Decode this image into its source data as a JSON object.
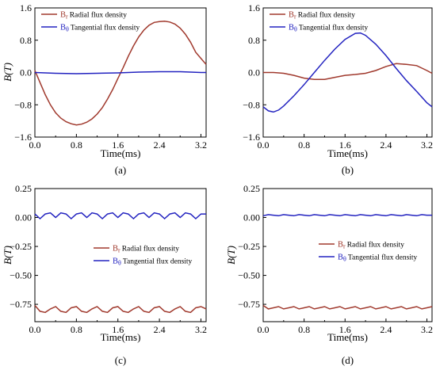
{
  "chart_data": [
    {
      "type": "line",
      "panel_label": "(a)",
      "xlabel": "Time(ms)",
      "ylabel": "B(T)",
      "xlim": [
        0,
        3.3
      ],
      "ylim": [
        -1.6,
        1.6
      ],
      "xticks": [
        "0.0",
        "0.8",
        "1.6",
        "2.4",
        "3.2"
      ],
      "yticks": [
        "1.6",
        "0.8",
        "0.0",
        "-0.8",
        "-1.6"
      ],
      "legend_position": "top-left",
      "series": [
        {
          "symbol": "B",
          "subscript": "r",
          "name": "Radial flux density",
          "color": "#a0392d",
          "x": [
            0,
            0.1,
            0.2,
            0.3,
            0.4,
            0.5,
            0.6,
            0.7,
            0.8,
            0.9,
            1.0,
            1.1,
            1.2,
            1.3,
            1.4,
            1.5,
            1.6,
            1.7,
            1.8,
            1.9,
            2.0,
            2.1,
            2.2,
            2.3,
            2.4,
            2.5,
            2.6,
            2.7,
            2.8,
            2.9,
            3.0,
            3.1,
            3.2,
            3.3
          ],
          "y": [
            0.05,
            -0.25,
            -0.55,
            -0.8,
            -1.0,
            -1.13,
            -1.22,
            -1.27,
            -1.3,
            -1.28,
            -1.23,
            -1.15,
            -1.03,
            -0.87,
            -0.66,
            -0.42,
            -0.15,
            0.12,
            0.4,
            0.66,
            0.88,
            1.05,
            1.17,
            1.24,
            1.26,
            1.27,
            1.25,
            1.2,
            1.1,
            0.95,
            0.75,
            0.5,
            0.35,
            0.2
          ]
        },
        {
          "symbol": "B",
          "subscript": "θ",
          "name": "Tangential flux density",
          "color": "#2323c0",
          "x": [
            0,
            0.4,
            0.8,
            1.2,
            1.6,
            2.0,
            2.4,
            2.8,
            3.2,
            3.3
          ],
          "y": [
            0.0,
            -0.02,
            -0.03,
            -0.02,
            -0.01,
            0.01,
            0.02,
            0.02,
            0.0,
            0.0
          ]
        }
      ]
    },
    {
      "type": "line",
      "panel_label": "(b)",
      "xlabel": "Time(ms)",
      "ylabel": "",
      "xlim": [
        0,
        3.3
      ],
      "ylim": [
        -1.6,
        1.6
      ],
      "xticks": [
        "0.0",
        "0.8",
        "1.6",
        "2.4",
        "3.2"
      ],
      "yticks": [
        "1.6",
        "0.8",
        "0.0",
        "-0.8",
        "-1.6"
      ],
      "legend_position": "top-left",
      "series": [
        {
          "symbol": "B",
          "subscript": "r",
          "name": "Radial flux density",
          "color": "#a0392d",
          "x": [
            0,
            0.2,
            0.4,
            0.6,
            0.8,
            1.0,
            1.2,
            1.4,
            1.6,
            1.8,
            2.0,
            2.2,
            2.4,
            2.6,
            2.8,
            3.0,
            3.2,
            3.3
          ],
          "y": [
            0.0,
            0.0,
            -0.02,
            -0.07,
            -0.14,
            -0.17,
            -0.17,
            -0.12,
            -0.07,
            -0.05,
            -0.02,
            0.05,
            0.15,
            0.22,
            0.2,
            0.17,
            0.05,
            -0.02
          ]
        },
        {
          "symbol": "B",
          "subscript": "θ",
          "name": "Tangential flux density",
          "color": "#2323c0",
          "x": [
            0,
            0.1,
            0.2,
            0.3,
            0.4,
            0.6,
            0.8,
            1.0,
            1.2,
            1.4,
            1.6,
            1.8,
            1.9,
            2.0,
            2.2,
            2.4,
            2.6,
            2.8,
            3.0,
            3.2,
            3.3
          ],
          "y": [
            -0.85,
            -0.95,
            -0.98,
            -0.93,
            -0.83,
            -0.58,
            -0.3,
            0.0,
            0.3,
            0.58,
            0.82,
            0.97,
            0.98,
            0.92,
            0.7,
            0.42,
            0.1,
            -0.2,
            -0.47,
            -0.75,
            -0.85
          ]
        }
      ]
    },
    {
      "type": "line",
      "panel_label": "(c)",
      "xlabel": "Time(ms)",
      "ylabel": "B(T)",
      "xlim": [
        0,
        3.3
      ],
      "ylim": [
        -0.9,
        0.25
      ],
      "xticks": [
        "0.0",
        "0.8",
        "1.6",
        "2.4",
        "3.2"
      ],
      "yticks": [
        "0.25",
        "0.00",
        "-0.25",
        "-0.50",
        "-0.75"
      ],
      "legend_position": "center-left",
      "series": [
        {
          "symbol": "B",
          "subscript": "r",
          "name": "Radial flux density",
          "color": "#a0392d",
          "x": [
            0,
            0.1,
            0.2,
            0.3,
            0.4,
            0.5,
            0.6,
            0.7,
            0.8,
            0.9,
            1.0,
            1.1,
            1.2,
            1.3,
            1.4,
            1.5,
            1.6,
            1.7,
            1.8,
            1.9,
            2.0,
            2.1,
            2.2,
            2.3,
            2.4,
            2.5,
            2.6,
            2.7,
            2.8,
            2.9,
            3.0,
            3.1,
            3.2,
            3.3
          ],
          "y": [
            -0.76,
            -0.81,
            -0.82,
            -0.79,
            -0.77,
            -0.81,
            -0.82,
            -0.78,
            -0.77,
            -0.81,
            -0.82,
            -0.79,
            -0.77,
            -0.81,
            -0.82,
            -0.78,
            -0.77,
            -0.81,
            -0.82,
            -0.79,
            -0.77,
            -0.81,
            -0.82,
            -0.78,
            -0.77,
            -0.81,
            -0.82,
            -0.79,
            -0.77,
            -0.81,
            -0.82,
            -0.78,
            -0.77,
            -0.79
          ]
        },
        {
          "symbol": "B",
          "subscript": "θ",
          "name": "Tangential flux density",
          "color": "#2323c0",
          "x": [
            0,
            0.1,
            0.2,
            0.3,
            0.4,
            0.5,
            0.6,
            0.7,
            0.8,
            0.9,
            1.0,
            1.1,
            1.2,
            1.3,
            1.4,
            1.5,
            1.6,
            1.7,
            1.8,
            1.9,
            2.0,
            2.1,
            2.2,
            2.3,
            2.4,
            2.5,
            2.6,
            2.7,
            2.8,
            2.9,
            3.0,
            3.1,
            3.2,
            3.3
          ],
          "y": [
            0.03,
            -0.01,
            0.03,
            0.04,
            0.0,
            0.04,
            0.03,
            -0.01,
            0.03,
            0.04,
            0.0,
            0.04,
            0.03,
            -0.01,
            0.03,
            0.04,
            0.0,
            0.04,
            0.03,
            -0.01,
            0.03,
            0.04,
            0.0,
            0.04,
            0.03,
            -0.01,
            0.03,
            0.04,
            0.0,
            0.04,
            0.03,
            -0.01,
            0.03,
            0.03
          ]
        }
      ]
    },
    {
      "type": "line",
      "panel_label": "(d)",
      "xlabel": "Time(ms)",
      "ylabel": "B(T)",
      "xlim": [
        0,
        3.3
      ],
      "ylim": [
        -0.9,
        0.25
      ],
      "xticks": [
        "0.0",
        "0.8",
        "1.6",
        "2.4",
        "3.2"
      ],
      "yticks": [
        "0.25",
        "0.00",
        "-0.25",
        "-0.50",
        "-0.75"
      ],
      "legend_position": "center-left",
      "series": [
        {
          "symbol": "B",
          "subscript": "r",
          "name": "Radial flux density",
          "color": "#a0392d",
          "x": [
            0,
            0.1,
            0.2,
            0.3,
            0.4,
            0.5,
            0.6,
            0.7,
            0.8,
            0.9,
            1.0,
            1.1,
            1.2,
            1.3,
            1.4,
            1.5,
            1.6,
            1.7,
            1.8,
            1.9,
            2.0,
            2.1,
            2.2,
            2.3,
            2.4,
            2.5,
            2.6,
            2.7,
            2.8,
            2.9,
            3.0,
            3.1,
            3.2,
            3.3
          ],
          "y": [
            -0.76,
            -0.79,
            -0.78,
            -0.77,
            -0.79,
            -0.78,
            -0.77,
            -0.79,
            -0.78,
            -0.77,
            -0.79,
            -0.78,
            -0.77,
            -0.79,
            -0.78,
            -0.77,
            -0.79,
            -0.78,
            -0.77,
            -0.79,
            -0.78,
            -0.77,
            -0.79,
            -0.78,
            -0.77,
            -0.79,
            -0.78,
            -0.77,
            -0.79,
            -0.78,
            -0.77,
            -0.79,
            -0.78,
            -0.77
          ]
        },
        {
          "symbol": "B",
          "subscript": "θ",
          "name": "Tangential flux density",
          "color": "#2323c0",
          "x": [
            0,
            0.1,
            0.2,
            0.3,
            0.4,
            0.5,
            0.6,
            0.7,
            0.8,
            0.9,
            1.0,
            1.1,
            1.2,
            1.3,
            1.4,
            1.5,
            1.6,
            1.7,
            1.8,
            1.9,
            2.0,
            2.1,
            2.2,
            2.3,
            2.4,
            2.5,
            2.6,
            2.7,
            2.8,
            2.9,
            3.0,
            3.1,
            3.2,
            3.3
          ],
          "y": [
            0.015,
            0.025,
            0.02,
            0.015,
            0.025,
            0.02,
            0.015,
            0.025,
            0.02,
            0.015,
            0.025,
            0.02,
            0.015,
            0.025,
            0.02,
            0.015,
            0.025,
            0.02,
            0.015,
            0.025,
            0.02,
            0.015,
            0.025,
            0.02,
            0.015,
            0.025,
            0.02,
            0.015,
            0.025,
            0.02,
            0.015,
            0.025,
            0.02,
            0.02
          ]
        }
      ]
    }
  ]
}
